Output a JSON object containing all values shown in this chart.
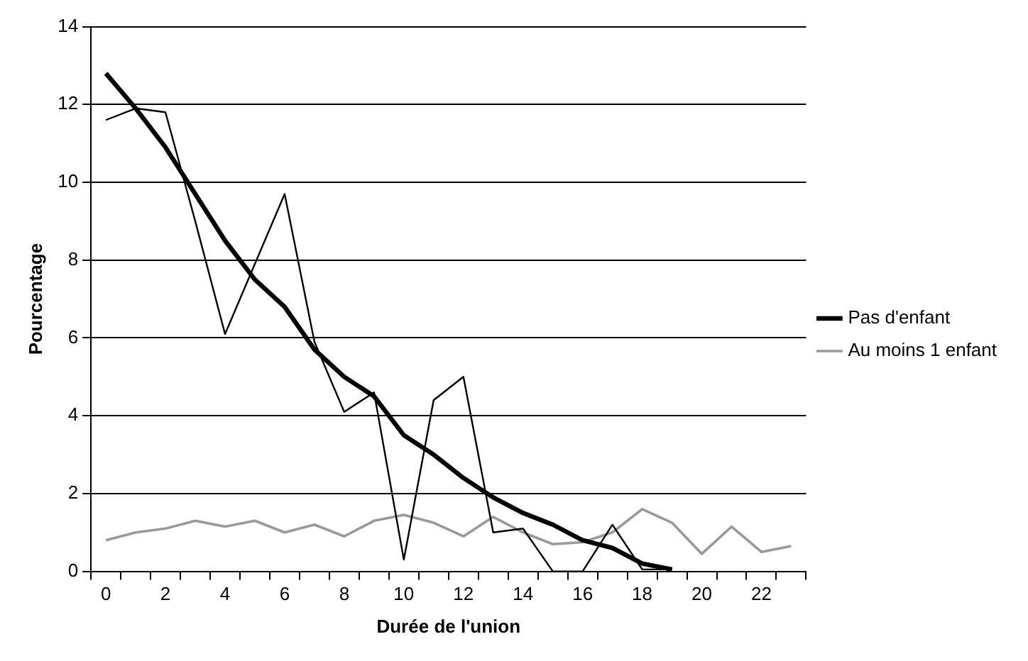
{
  "chart_data": {
    "type": "line",
    "xlabel": "Durée de l'union",
    "ylabel": "Pourcentage",
    "categories": [
      "0",
      null,
      "2",
      null,
      "4",
      null,
      "6",
      null,
      "8",
      null,
      "10",
      null,
      "12",
      null,
      "14",
      null,
      "16",
      null,
      "18",
      null,
      "20",
      null,
      "22",
      null
    ],
    "series": [
      {
        "color": "#000000",
        "values": [
          11.6,
          11.9,
          11.8,
          9.0,
          6.1,
          7.9,
          9.7,
          5.9,
          4.1,
          4.6,
          0.3,
          4.4,
          5.0,
          1.0,
          1.1,
          0,
          0,
          1.2,
          0.05,
          0.05,
          null,
          null,
          null,
          null
        ]
      },
      {
        "name": "Pas d'enfant",
        "color": "#000000",
        "values": [
          12.8,
          11.9,
          10.9,
          9.7,
          8.5,
          7.5,
          6.8,
          5.7,
          5.0,
          4.5,
          3.5,
          3.0,
          2.4,
          1.9,
          1.5,
          1.2,
          0.8,
          0.6,
          0.2,
          0.05,
          null,
          null,
          null,
          null
        ]
      },
      {
        "name": "Au moins 1 enfant",
        "color": "#999999",
        "values": [
          0.8,
          1.0,
          1.1,
          1.3,
          1.15,
          1.3,
          1.0,
          1.2,
          0.9,
          1.3,
          1.45,
          1.25,
          0.9,
          1.4,
          1.0,
          0.7,
          0.75,
          1.0,
          1.6,
          1.25,
          0.45,
          1.15,
          0.5,
          0.65
        ]
      }
    ],
    "ylim": [
      0,
      14
    ],
    "yticks": [
      0,
      2,
      4,
      6,
      8,
      10,
      12,
      14
    ],
    "grid": "y",
    "legend": "right",
    "marker": "none",
    "line_style": "solid"
  }
}
